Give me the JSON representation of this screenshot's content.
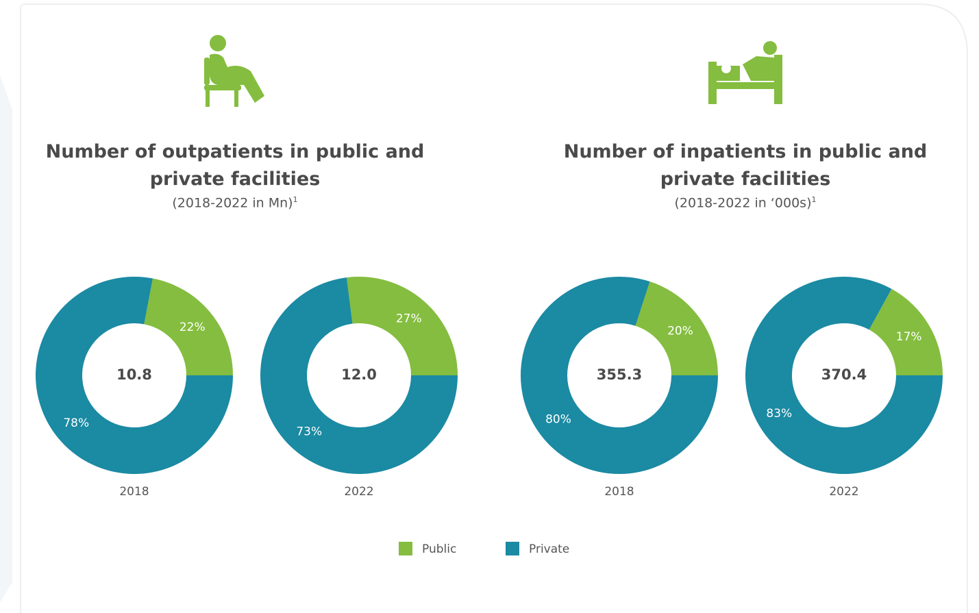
{
  "panels": [
    {
      "title": "Number of outpatients in public and private facilities",
      "subtitle": "(2018-2022 in Mn)",
      "subtitle_note": "1"
    },
    {
      "title": "Number of inpatients in public and private facilities",
      "subtitle": "(2018-2022 in ‘000s)",
      "subtitle_note": "1"
    }
  ],
  "chart_data": [
    {
      "type": "donut",
      "x_label": "2018",
      "total": 10.8,
      "total_label": "10.8",
      "categories": [
        "Public",
        "Private"
      ],
      "values": [
        22,
        78
      ],
      "value_labels": [
        "22%",
        "78%"
      ],
      "colors": [
        "#84bd3f",
        "#1b8aa3"
      ]
    },
    {
      "type": "donut",
      "x_label": "2022",
      "total": 12.0,
      "total_label": "12.0",
      "categories": [
        "Public",
        "Private"
      ],
      "values": [
        27,
        73
      ],
      "value_labels": [
        "27%",
        "73%"
      ],
      "colors": [
        "#84bd3f",
        "#1b8aa3"
      ]
    },
    {
      "type": "donut",
      "x_label": "2018",
      "total": 355.3,
      "total_label": "355.3",
      "categories": [
        "Public",
        "Private"
      ],
      "values": [
        20,
        80
      ],
      "value_labels": [
        "20%",
        "80%"
      ],
      "colors": [
        "#84bd3f",
        "#1b8aa3"
      ]
    },
    {
      "type": "donut",
      "x_label": "2022",
      "total": 370.4,
      "total_label": "370.4",
      "categories": [
        "Public",
        "Private"
      ],
      "values": [
        17,
        83
      ],
      "value_labels": [
        "17%",
        "83%"
      ],
      "colors": [
        "#84bd3f",
        "#1b8aa3"
      ]
    }
  ]
}
